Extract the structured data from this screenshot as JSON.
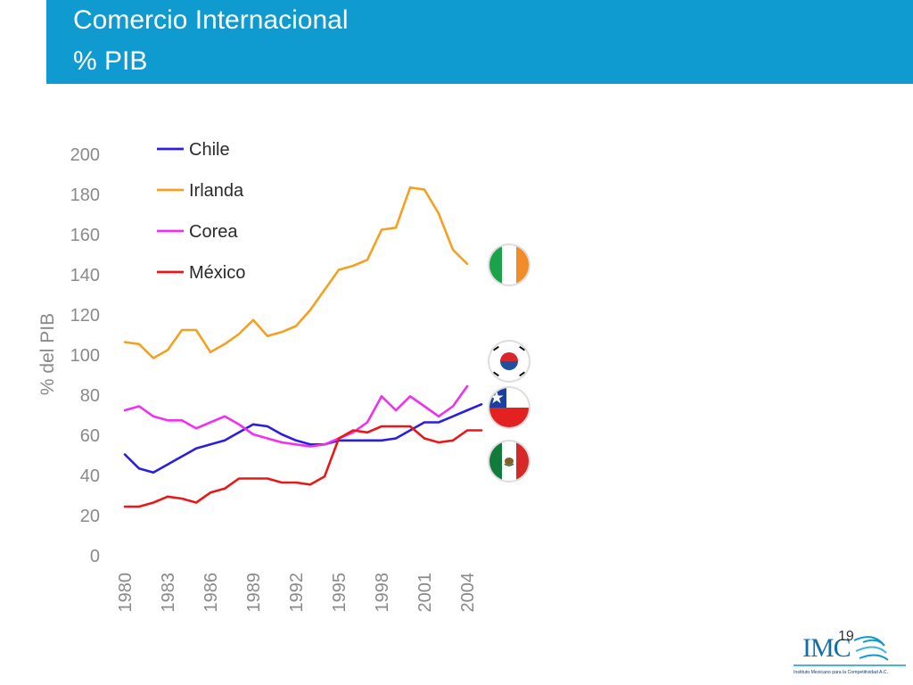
{
  "header": {
    "title_line1": "Comercio Internacional",
    "title_line2": "% PIB",
    "background_color": "#0f9ad0"
  },
  "chart_data": {
    "type": "line",
    "title": "",
    "ylabel": "% del PIB",
    "xlabel": "",
    "ylim": [
      0,
      200
    ],
    "yticks": [
      "0",
      "20",
      "40",
      "60",
      "80",
      "100",
      "120",
      "140",
      "160",
      "180",
      "200"
    ],
    "xtick_labels": [
      "1980",
      "1983",
      "1986",
      "1989",
      "1992",
      "1995",
      "1998",
      "2001",
      "2004"
    ],
    "xtick_years": [
      1980,
      1983,
      1986,
      1989,
      1992,
      1995,
      1998,
      2001,
      2004
    ],
    "grid": false,
    "legend_position": "top-left",
    "series": [
      {
        "name": "Chile",
        "color": "#2a1ee0",
        "x": [
          1980,
          1981,
          1982,
          1983,
          1984,
          1985,
          1986,
          1987,
          1988,
          1989,
          1990,
          1991,
          1992,
          1993,
          1994,
          1995,
          1996,
          1997,
          1998,
          1999,
          2000,
          2001,
          2002,
          2003,
          2004,
          2005
        ],
        "values": [
          50,
          43,
          41,
          45,
          49,
          53,
          55,
          57,
          61,
          65,
          64,
          60,
          57,
          55,
          55,
          57,
          57,
          57,
          57,
          58,
          62,
          66,
          66,
          69,
          72,
          75
        ]
      },
      {
        "name": "Irlanda",
        "color": "#f5a020",
        "x": [
          1980,
          1981,
          1982,
          1983,
          1984,
          1985,
          1986,
          1987,
          1988,
          1989,
          1990,
          1991,
          1992,
          1993,
          1994,
          1995,
          1996,
          1997,
          1998,
          1999,
          2000,
          2001,
          2002,
          2003,
          2004
        ],
        "values": [
          106,
          105,
          98,
          102,
          112,
          112,
          101,
          105,
          110,
          117,
          109,
          111,
          114,
          122,
          132,
          142,
          144,
          147,
          162,
          163,
          183,
          182,
          170,
          152,
          145
        ]
      },
      {
        "name": "Corea",
        "color": "#f030f0",
        "x": [
          1980,
          1981,
          1982,
          1983,
          1984,
          1985,
          1986,
          1987,
          1988,
          1989,
          1990,
          1991,
          1992,
          1993,
          1994,
          1995,
          1996,
          1997,
          1998,
          1999,
          2000,
          2001,
          2002,
          2003,
          2004
        ],
        "values": [
          72,
          74,
          69,
          67,
          67,
          63,
          66,
          69,
          65,
          60,
          58,
          56,
          55,
          54,
          55,
          58,
          61,
          66,
          79,
          72,
          79,
          74,
          69,
          74,
          84
        ]
      },
      {
        "name": "México",
        "color": "#e81818",
        "x": [
          1980,
          1981,
          1982,
          1983,
          1984,
          1985,
          1986,
          1987,
          1988,
          1989,
          1990,
          1991,
          1992,
          1993,
          1994,
          1995,
          1996,
          1997,
          1998,
          1999,
          2000,
          2001,
          2002,
          2003,
          2004,
          2005
        ],
        "values": [
          24,
          24,
          26,
          29,
          28,
          26,
          31,
          33,
          38,
          38,
          38,
          36,
          36,
          35,
          39,
          58,
          62,
          61,
          64,
          64,
          64,
          58,
          56,
          57,
          62,
          62
        ]
      }
    ]
  },
  "flags": [
    {
      "name": "ireland-flag-icon",
      "country": "Irlanda"
    },
    {
      "name": "korea-flag-icon",
      "country": "Corea"
    },
    {
      "name": "chile-flag-icon",
      "country": "Chile"
    },
    {
      "name": "mexico-flag-icon",
      "country": "México"
    }
  ],
  "footer": {
    "page_number": "19",
    "logo_text": "IMC",
    "logo_subtitle": "Instituto Mexicano para la Competitividad A.C.",
    "logo_color": "#0f9ad0"
  }
}
